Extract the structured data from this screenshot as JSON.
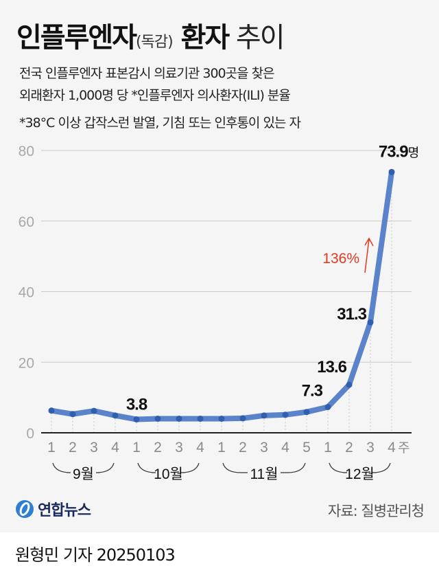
{
  "header": {
    "title_main": "인플루엔자",
    "title_paren": "(독감)",
    "title_bold2": " 환자",
    "title_light": " 추이",
    "subtitle_lines": [
      "전국 인플루엔자 표본감시 의료기관 300곳을 찾은",
      "외래환자 1,000명 당 *인플루엔자 의사환자(ILI) 분율",
      "*38°C 이상 갑작스런 발열, 기침 또는 인후통이 있는 자"
    ]
  },
  "chart_data": {
    "type": "line",
    "title": "인플루엔자(독감) 환자 추이",
    "subtitle": "전국 인플루엔자 표본감시 의료기관 300곳을 찾은 외래환자 1,000명 당 인플루엔자 의사환자(ILI) 분율",
    "xlabel": "주",
    "ylabel": "명",
    "ylim": [
      0,
      80
    ],
    "yticks": [
      0,
      20,
      40,
      60,
      80
    ],
    "grid": true,
    "months": [
      {
        "label": "9월",
        "weeks": [
          "1",
          "2",
          "3",
          "4"
        ]
      },
      {
        "label": "10월",
        "weeks": [
          "1",
          "2",
          "3",
          "4"
        ]
      },
      {
        "label": "11월",
        "weeks": [
          "1",
          "2",
          "3",
          "4",
          "5"
        ]
      },
      {
        "label": "12월",
        "weeks": [
          "1",
          "2",
          "3",
          "4"
        ]
      }
    ],
    "categories": [
      "9월 1주",
      "9월 2주",
      "9월 3주",
      "9월 4주",
      "10월 1주",
      "10월 2주",
      "10월 3주",
      "10월 4주",
      "11월 1주",
      "11월 2주",
      "11월 3주",
      "11월 4주",
      "11월 5주",
      "12월 1주",
      "12월 2주",
      "12월 3주",
      "12월 4주"
    ],
    "values": [
      6.3,
      5.3,
      6.2,
      4.9,
      3.8,
      4.0,
      4.0,
      4.0,
      4.0,
      4.1,
      4.9,
      5.1,
      5.9,
      7.3,
      13.6,
      31.3,
      73.9
    ],
    "labeled_points": [
      {
        "index": 4,
        "label": "3.8"
      },
      {
        "index": 13,
        "label": "7.3"
      },
      {
        "index": 14,
        "label": "13.6"
      },
      {
        "index": 15,
        "label": "31.3"
      },
      {
        "index": 16,
        "label": "73.9명"
      }
    ],
    "annotation": {
      "text": "136%",
      "arrow": "up",
      "color": "#e03a1e"
    },
    "line_color": "#5b83c9",
    "marker_color": "#2f5fae"
  },
  "footer": {
    "logo_text": "연합뉴스",
    "source": "자료: 질병관리청",
    "byline": "원형민 기자  20250103"
  }
}
